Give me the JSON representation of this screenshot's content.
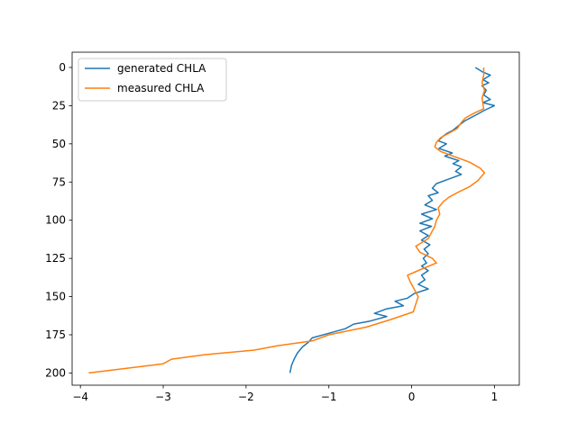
{
  "chart_data": {
    "type": "line",
    "title": "",
    "xlabel": "",
    "ylabel": "",
    "xlim": [
      -4.1,
      1.3
    ],
    "ylim": [
      208,
      -10
    ],
    "y_inverted": true,
    "grid": false,
    "legend_position": "top-left",
    "xticks": [
      -4,
      -3,
      -2,
      -1,
      0,
      1
    ],
    "xtick_labels": [
      "−4",
      "−3",
      "−2",
      "−1",
      "0",
      "1"
    ],
    "yticks": [
      0,
      25,
      50,
      75,
      100,
      125,
      150,
      175,
      200
    ],
    "ytick_labels": [
      "0",
      "25",
      "50",
      "75",
      "100",
      "125",
      "150",
      "175",
      "200"
    ],
    "series": [
      {
        "name": "generated CHLA",
        "color": "#1f77b4",
        "points": [
          [
            0.77,
            0
          ],
          [
            0.86,
            3
          ],
          [
            0.95,
            5
          ],
          [
            0.86,
            8
          ],
          [
            0.93,
            10
          ],
          [
            0.85,
            12
          ],
          [
            0.9,
            15
          ],
          [
            0.87,
            18
          ],
          [
            0.95,
            21
          ],
          [
            0.86,
            23
          ],
          [
            1.0,
            25
          ],
          [
            0.88,
            28
          ],
          [
            0.78,
            31
          ],
          [
            0.64,
            35
          ],
          [
            0.57,
            38
          ],
          [
            0.5,
            41
          ],
          [
            0.43,
            43
          ],
          [
            0.38,
            45
          ],
          [
            0.32,
            48
          ],
          [
            0.42,
            50
          ],
          [
            0.33,
            53
          ],
          [
            0.49,
            56
          ],
          [
            0.4,
            58
          ],
          [
            0.57,
            61
          ],
          [
            0.5,
            63
          ],
          [
            0.6,
            65
          ],
          [
            0.53,
            68
          ],
          [
            0.6,
            70
          ],
          [
            0.45,
            73
          ],
          [
            0.3,
            76
          ],
          [
            0.25,
            79
          ],
          [
            0.32,
            82
          ],
          [
            0.2,
            84
          ],
          [
            0.25,
            87
          ],
          [
            0.16,
            90
          ],
          [
            0.3,
            93
          ],
          [
            0.12,
            96
          ],
          [
            0.25,
            99
          ],
          [
            0.1,
            102
          ],
          [
            0.24,
            104
          ],
          [
            0.1,
            107
          ],
          [
            0.2,
            110
          ],
          [
            0.12,
            113
          ],
          [
            0.22,
            116
          ],
          [
            0.15,
            119
          ],
          [
            0.2,
            122
          ],
          [
            0.14,
            125
          ],
          [
            0.18,
            128
          ],
          [
            0.12,
            130
          ],
          [
            0.2,
            133
          ],
          [
            0.12,
            136
          ],
          [
            0.16,
            139
          ],
          [
            0.08,
            142
          ],
          [
            0.2,
            145
          ],
          [
            0.03,
            148
          ],
          [
            -0.05,
            151
          ],
          [
            -0.2,
            153
          ],
          [
            -0.1,
            156
          ],
          [
            -0.3,
            158
          ],
          [
            -0.45,
            161
          ],
          [
            -0.3,
            163
          ],
          [
            -0.5,
            166
          ],
          [
            -0.7,
            168
          ],
          [
            -0.8,
            171
          ],
          [
            -1.0,
            174
          ],
          [
            -1.2,
            177
          ],
          [
            -1.25,
            180
          ],
          [
            -1.32,
            183
          ],
          [
            -1.38,
            187
          ],
          [
            -1.42,
            191
          ],
          [
            -1.45,
            195
          ],
          [
            -1.47,
            200
          ]
        ]
      },
      {
        "name": "measured CHLA",
        "color": "#ff7f0e",
        "points": [
          [
            0.87,
            0
          ],
          [
            0.87,
            5
          ],
          [
            0.85,
            10
          ],
          [
            0.88,
            15
          ],
          [
            0.85,
            20
          ],
          [
            0.87,
            27
          ],
          [
            0.75,
            30
          ],
          [
            0.65,
            33
          ],
          [
            0.6,
            36
          ],
          [
            0.55,
            40
          ],
          [
            0.45,
            43
          ],
          [
            0.35,
            46
          ],
          [
            0.3,
            49
          ],
          [
            0.28,
            52
          ],
          [
            0.35,
            55
          ],
          [
            0.5,
            58
          ],
          [
            0.7,
            62
          ],
          [
            0.83,
            66
          ],
          [
            0.88,
            69
          ],
          [
            0.8,
            74
          ],
          [
            0.7,
            78
          ],
          [
            0.55,
            82
          ],
          [
            0.45,
            85
          ],
          [
            0.38,
            88
          ],
          [
            0.32,
            92
          ],
          [
            0.34,
            96
          ],
          [
            0.3,
            100
          ],
          [
            0.28,
            104
          ],
          [
            0.24,
            108
          ],
          [
            0.2,
            112
          ],
          [
            0.05,
            117
          ],
          [
            0.1,
            121
          ],
          [
            0.25,
            125
          ],
          [
            0.3,
            128
          ],
          [
            0.12,
            132
          ],
          [
            -0.05,
            136
          ],
          [
            -0.02,
            140
          ],
          [
            0.02,
            144
          ],
          [
            0.08,
            150
          ],
          [
            0.05,
            155
          ],
          [
            0.02,
            160
          ],
          [
            -0.25,
            165
          ],
          [
            -0.55,
            170
          ],
          [
            -1.0,
            175
          ],
          [
            -1.2,
            179
          ],
          [
            -1.6,
            182
          ],
          [
            -1.9,
            185
          ],
          [
            -2.5,
            188
          ],
          [
            -2.9,
            191
          ],
          [
            -3.0,
            194
          ],
          [
            -3.3,
            196
          ],
          [
            -3.6,
            198
          ],
          [
            -3.9,
            200
          ]
        ]
      }
    ]
  }
}
